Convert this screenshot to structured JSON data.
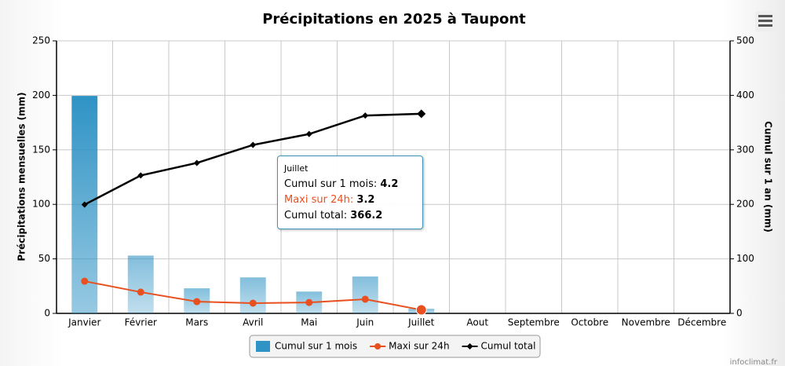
{
  "chart_data": {
    "type": "combo",
    "title": "Précipitations en 2025 à Taupont",
    "ylabel": "Précipitations mensuelles (mm)",
    "y2label": "Cumul sur 1 an (mm)",
    "credit": "infoclimat.fr",
    "categories": [
      "Janvier",
      "Février",
      "Mars",
      "Avril",
      "Mai",
      "Juin",
      "Juillet",
      "Aout",
      "Septembre",
      "Octobre",
      "Novembre",
      "Décembre"
    ],
    "ylim": [
      0,
      250
    ],
    "yticks": [
      0,
      50,
      100,
      150,
      200,
      250
    ],
    "y2lim": [
      0,
      500
    ],
    "y2ticks": [
      0,
      100,
      200,
      300,
      400,
      500
    ],
    "grid": true,
    "series": [
      {
        "name": "Cumul sur 1 mois",
        "type": "bar",
        "color": "#2f93c5",
        "values": [
          199.5,
          53,
          23,
          33,
          20,
          33.8,
          4.2,
          null,
          null,
          null,
          null,
          null
        ]
      },
      {
        "name": "Maxi sur 24h",
        "type": "line",
        "color": "#e8501f",
        "values": [
          29.5,
          19.5,
          10.8,
          9.4,
          10,
          13,
          3.2,
          null,
          null,
          null,
          null,
          null
        ]
      },
      {
        "name": "Cumul total",
        "type": "line",
        "axis": "y2",
        "color": "#000000",
        "values": [
          199.5,
          253,
          276,
          309,
          329,
          363,
          366.2,
          null,
          null,
          null,
          null,
          null
        ]
      }
    ],
    "tooltip_index": 6
  }
}
